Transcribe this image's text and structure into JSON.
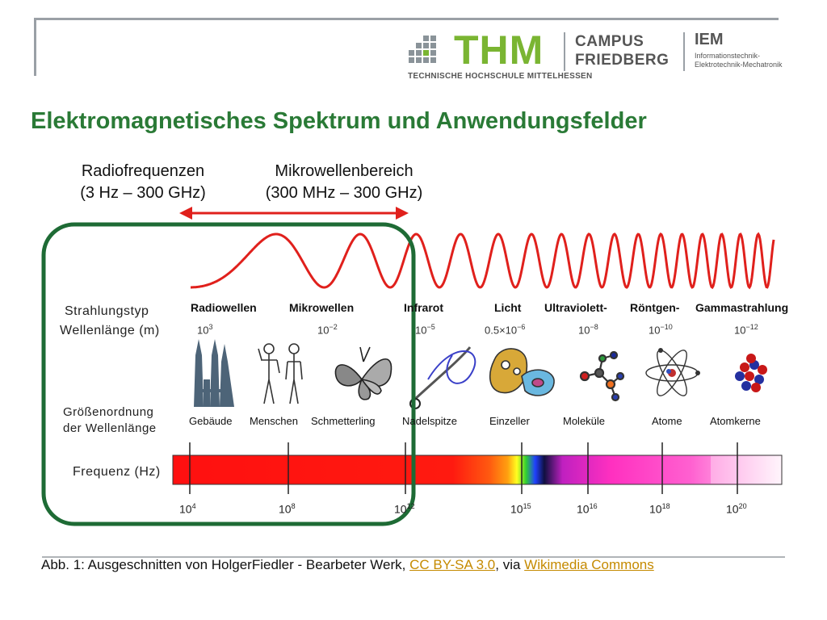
{
  "header": {
    "logo_text": "THM",
    "logo_subtitle": "TECHNISCHE HOCHSCHULE MITTELHESSEN",
    "campus_line1": "CAMPUS",
    "campus_line2": "FRIEDBERG",
    "dept_short": "IEM",
    "dept_line1": "Informationstechnik-",
    "dept_line2": "Elektrotechnik-Mechatronik"
  },
  "title": "Elektromagnetisches Spektrum und Anwendungsfelder",
  "ranges": [
    {
      "name": "Radiofrequenzen",
      "span": "(3 Hz – 300 GHz)"
    },
    {
      "name": "Mikrowellenbereich",
      "span": "(300 MHz – 300 GHz)"
    }
  ],
  "side_labels": {
    "type": "Strahlungstyp",
    "wavelength": "Wellenlänge (m)",
    "magnitude_1": "Größenordnung",
    "magnitude_2": "der Wellenlänge",
    "frequency": "Frequenz (Hz)"
  },
  "radiation_types": [
    "Radiowellen",
    "Mikrowellen",
    "Infrarot",
    "Licht",
    "Ultraviolett-",
    "Röntgen-",
    "Gammastrahlung"
  ],
  "wavelengths": [
    {
      "base": "10",
      "exp": "3"
    },
    {
      "base": "10",
      "exp": "−2"
    },
    {
      "base": "10",
      "exp": "−5"
    },
    {
      "base": "0.5×10",
      "exp": "−6"
    },
    {
      "base": "10",
      "exp": "−8"
    },
    {
      "base": "10",
      "exp": "−10"
    },
    {
      "base": "10",
      "exp": "−12"
    }
  ],
  "objects": [
    "Gebäude",
    "Menschen",
    "Schmetterling",
    "Nadelspitze",
    "Einzeller",
    "Moleküle",
    "Atome",
    "Atomkerne"
  ],
  "frequencies": [
    {
      "base": "10",
      "exp": "4"
    },
    {
      "base": "10",
      "exp": "8"
    },
    {
      "base": "10",
      "exp": "12"
    },
    {
      "base": "10",
      "exp": "15"
    },
    {
      "base": "10",
      "exp": "16"
    },
    {
      "base": "10",
      "exp": "18"
    },
    {
      "base": "10",
      "exp": "20"
    }
  ],
  "caption": {
    "text": "Abb. 1: Ausgeschnitten von HolgerFiedler - Bearbeter Werk, ",
    "license_link": "CC BY-SA 3.0",
    "middle": ", via ",
    "source_link": "Wikimedia Commons"
  },
  "colors": {
    "title": "#2a7a36",
    "highlight_box": "#1e6b35",
    "arrow": "#e0201c",
    "wave": "#e0201c",
    "brand_green": "#7ab532",
    "link": "#c58a00"
  }
}
